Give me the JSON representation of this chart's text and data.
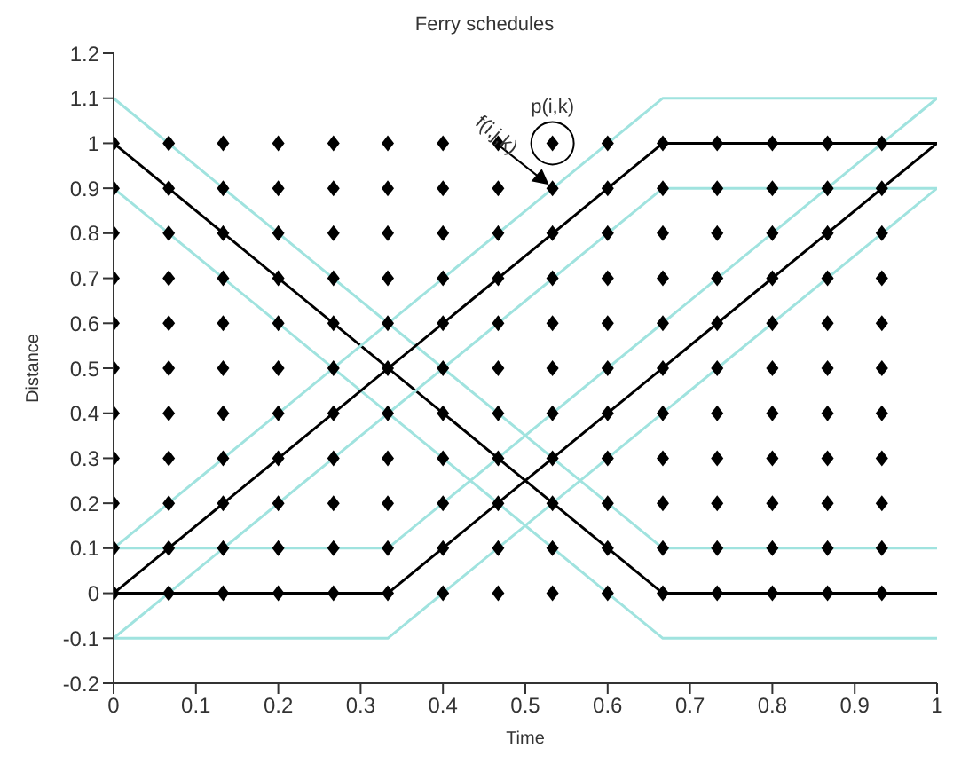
{
  "chart_data": {
    "type": "line",
    "title": "Ferry schedules",
    "xlabel": "Time",
    "ylabel": "Distance",
    "xlim": [
      0,
      1
    ],
    "xticks": [
      0,
      0.1,
      0.2,
      0.3,
      0.4,
      0.5,
      0.6,
      0.7,
      0.8,
      0.9,
      1
    ],
    "ylim": [
      -0.2,
      1.2
    ],
    "yticks": [
      -0.2,
      -0.1,
      0,
      0.1,
      0.2,
      0.3,
      0.4,
      0.5,
      0.6,
      0.7,
      0.8,
      0.9,
      1,
      1.1,
      1.2
    ],
    "grid": false,
    "legend": false,
    "line_style": "solid",
    "annotations": [
      {
        "text": "f(i,j,k)",
        "x": 0.533,
        "y": 0.9
      },
      {
        "text": "p(i,k)",
        "x": 0.533,
        "y": 1
      }
    ],
    "series": [
      {
        "color": "#000000",
        "x": [
          0,
          0.667,
          1
        ],
        "values": [
          1,
          0,
          0
        ],
        "marker": "none"
      },
      {
        "color": "#a0e3df",
        "x": [
          0,
          0.667,
          1
        ],
        "values": [
          1.1,
          0.1,
          0.1
        ],
        "marker": "none"
      },
      {
        "color": "#a0e3df",
        "x": [
          0,
          0.667,
          1
        ],
        "values": [
          0.9,
          -0.1,
          -0.1
        ],
        "marker": "none"
      },
      {
        "color": "#000000",
        "x": [
          0,
          0.667,
          1
        ],
        "values": [
          0,
          1,
          1
        ],
        "marker": "none"
      },
      {
        "color": "#a0e3df",
        "x": [
          0,
          0.667,
          1
        ],
        "values": [
          0.1,
          1.1,
          1.1
        ],
        "marker": "none"
      },
      {
        "color": "#a0e3df",
        "x": [
          0,
          0.667,
          1
        ],
        "values": [
          -0.1,
          0.9,
          0.9
        ],
        "marker": "none"
      },
      {
        "color": "#000000",
        "x": [
          0,
          0.333,
          1
        ],
        "values": [
          0,
          0,
          1
        ],
        "marker": "none"
      },
      {
        "color": "#a0e3df",
        "x": [
          0,
          0.333,
          1
        ],
        "values": [
          0.1,
          0.1,
          1.1
        ],
        "marker": "none"
      },
      {
        "color": "#a0e3df",
        "x": [
          0,
          0.333,
          1
        ],
        "values": [
          -0.1,
          -0.1,
          0.9
        ],
        "marker": "none"
      },
      {
        "type": "scatter",
        "color": "#000000",
        "marker": "diamond",
        "x": [
          0,
          0.067,
          0.133,
          0.2,
          0.267,
          0.333,
          0.4,
          0.467,
          0.533,
          0.6,
          0.667,
          0.733,
          0.8,
          0.867,
          0.933,
          0,
          0.067,
          0.133,
          0.2,
          0.267,
          0.333,
          0.4,
          0.467,
          0.533,
          0.6,
          0.667,
          0.733,
          0.8,
          0.867,
          0.933,
          0,
          0.067,
          0.133,
          0.2,
          0.267,
          0.333,
          0.4,
          0.467,
          0.533,
          0.6,
          0.667,
          0.733,
          0.8,
          0.867,
          0.933,
          0,
          0.067,
          0.133,
          0.2,
          0.267,
          0.333,
          0.4,
          0.467,
          0.533,
          0.6,
          0.667,
          0.733,
          0.8,
          0.867,
          0.933,
          0,
          0.067,
          0.133,
          0.2,
          0.267,
          0.333,
          0.4,
          0.467,
          0.533,
          0.6,
          0.667,
          0.733,
          0.8,
          0.867,
          0.933,
          0,
          0.067,
          0.133,
          0.2,
          0.267,
          0.333,
          0.4,
          0.467,
          0.533,
          0.6,
          0.667,
          0.733,
          0.8,
          0.867,
          0.933,
          0,
          0.067,
          0.133,
          0.2,
          0.267,
          0.333,
          0.4,
          0.467,
          0.533,
          0.6,
          0.667,
          0.733,
          0.8,
          0.867,
          0.933,
          0,
          0.067,
          0.133,
          0.2,
          0.267,
          0.333,
          0.4,
          0.467,
          0.533,
          0.6,
          0.667,
          0.733,
          0.8,
          0.867,
          0.933,
          0,
          0.067,
          0.133,
          0.2,
          0.267,
          0.333,
          0.4,
          0.467,
          0.533,
          0.6,
          0.667,
          0.733,
          0.8,
          0.867,
          0.933,
          0,
          0.067,
          0.133,
          0.2,
          0.267,
          0.333,
          0.4,
          0.467,
          0.533,
          0.6,
          0.667,
          0.733,
          0.8,
          0.867,
          0.933,
          0,
          0.067,
          0.133,
          0.2,
          0.267,
          0.333,
          0.4,
          0.467,
          0.533,
          0.6,
          0.667,
          0.733,
          0.8,
          0.867,
          0.933
        ],
        "values": [
          0,
          0,
          0,
          0,
          0,
          0,
          0,
          0,
          0,
          0,
          0,
          0,
          0,
          0,
          0,
          0.1,
          0.1,
          0.1,
          0.1,
          0.1,
          0.1,
          0.1,
          0.1,
          0.1,
          0.1,
          0.1,
          0.1,
          0.1,
          0.1,
          0.1,
          0.2,
          0.2,
          0.2,
          0.2,
          0.2,
          0.2,
          0.2,
          0.2,
          0.2,
          0.2,
          0.2,
          0.2,
          0.2,
          0.2,
          0.2,
          0.3,
          0.3,
          0.3,
          0.3,
          0.3,
          0.3,
          0.3,
          0.3,
          0.3,
          0.3,
          0.3,
          0.3,
          0.3,
          0.3,
          0.3,
          0.4,
          0.4,
          0.4,
          0.4,
          0.4,
          0.4,
          0.4,
          0.4,
          0.4,
          0.4,
          0.4,
          0.4,
          0.4,
          0.4,
          0.4,
          0.5,
          0.5,
          0.5,
          0.5,
          0.5,
          0.5,
          0.5,
          0.5,
          0.5,
          0.5,
          0.5,
          0.5,
          0.5,
          0.5,
          0.5,
          0.6,
          0.6,
          0.6,
          0.6,
          0.6,
          0.6,
          0.6,
          0.6,
          0.6,
          0.6,
          0.6,
          0.6,
          0.6,
          0.6,
          0.6,
          0.7,
          0.7,
          0.7,
          0.7,
          0.7,
          0.7,
          0.7,
          0.7,
          0.7,
          0.7,
          0.7,
          0.7,
          0.7,
          0.7,
          0.7,
          0.8,
          0.8,
          0.8,
          0.8,
          0.8,
          0.8,
          0.8,
          0.8,
          0.8,
          0.8,
          0.8,
          0.8,
          0.8,
          0.8,
          0.8,
          0.9,
          0.9,
          0.9,
          0.9,
          0.9,
          0.9,
          0.9,
          0.9,
          0.9,
          0.9,
          0.9,
          0.9,
          0.9,
          0.9,
          0.9,
          1,
          1,
          1,
          1,
          1,
          1,
          1,
          1,
          1,
          1,
          1,
          1,
          1,
          1,
          1
        ]
      }
    ]
  }
}
